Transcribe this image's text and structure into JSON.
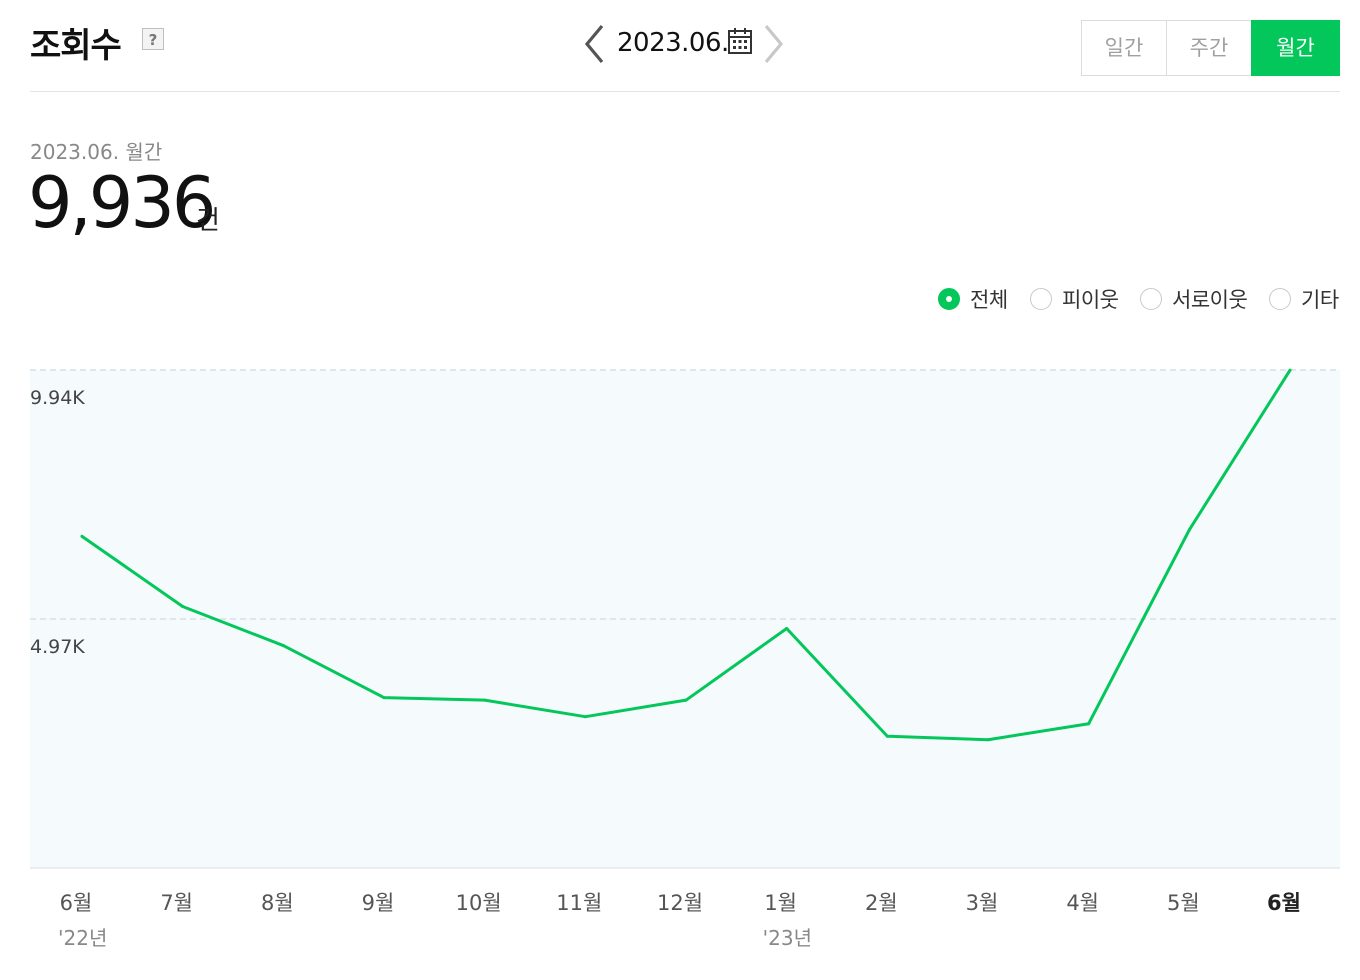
{
  "header": {
    "title": "조회수",
    "help_icon": "question-mark-icon",
    "help_glyph": "?",
    "date_label": "2023.06.",
    "prev_icon": "chevron-left-icon",
    "next_icon": "chevron-right-icon",
    "calendar_icon": "calendar-icon"
  },
  "period_tabs": [
    {
      "label": "일간",
      "selected": false
    },
    {
      "label": "주간",
      "selected": false
    },
    {
      "label": "월간",
      "selected": true
    }
  ],
  "summary": {
    "period_label": "2023.06. 월간",
    "total_value": "9,936",
    "unit": "건"
  },
  "filters": [
    {
      "label": "전체",
      "selected": true
    },
    {
      "label": "피이웃",
      "selected": false
    },
    {
      "label": "서로이웃",
      "selected": false
    },
    {
      "label": "기타",
      "selected": false
    }
  ],
  "colors": {
    "accent": "#03c75a",
    "plot_background": "#f5fafd",
    "gridline": "#dde7ee"
  },
  "chart_data": {
    "type": "line",
    "categories": [
      "6월",
      "7월",
      "8월",
      "9월",
      "10월",
      "11월",
      "12월",
      "1월",
      "2월",
      "3월",
      "4월",
      "5월",
      "6월"
    ],
    "year_labels": [
      {
        "index": 0,
        "label": "'22년"
      },
      {
        "index": 7,
        "label": "'23년"
      }
    ],
    "highlight_index": 12,
    "series": [
      {
        "values": [
          6620,
          5220,
          4440,
          3400,
          3350,
          3020,
          3350,
          4780,
          2630,
          2560,
          2880,
          6750,
          9936
        ]
      }
    ],
    "yticks": [
      {
        "value": 4970,
        "label": "4.97K"
      },
      {
        "value": 9940,
        "label": "9.94K"
      }
    ],
    "ylim": [
      0,
      9940
    ],
    "grid": true,
    "legend": "none"
  }
}
